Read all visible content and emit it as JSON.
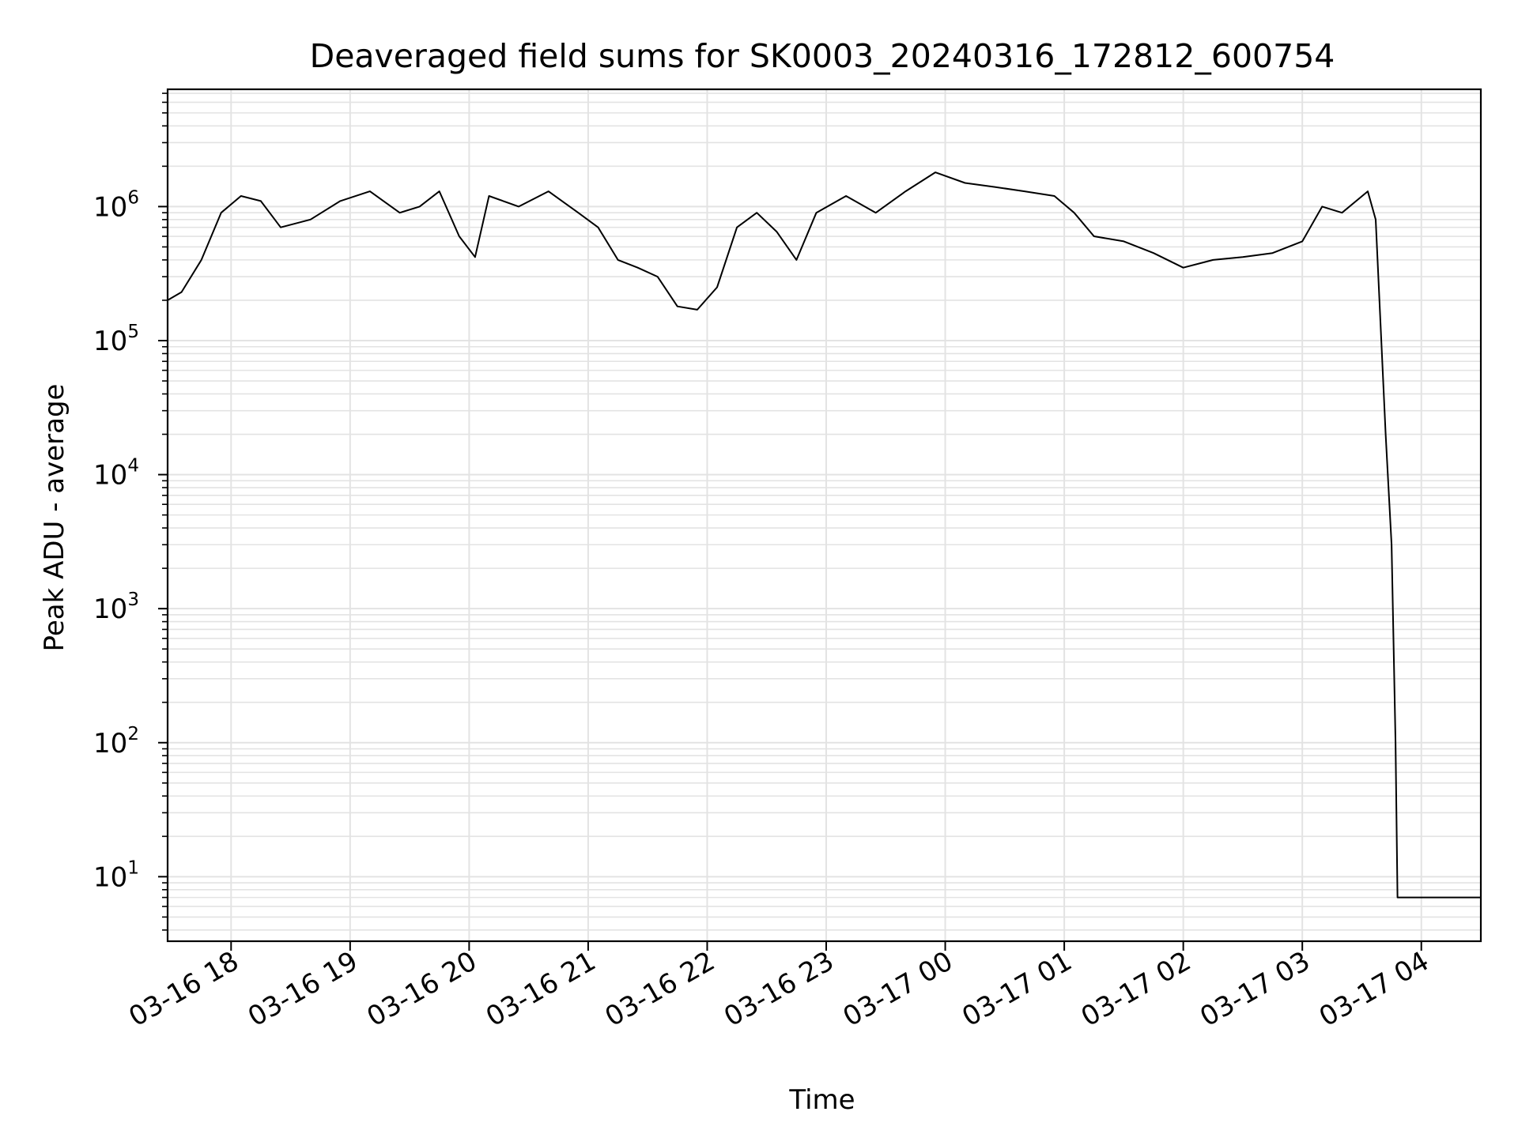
{
  "chart_data": {
    "type": "line",
    "title": "Deaveraged field sums for SK0003_20240316_172812_600754",
    "xlabel": "Time",
    "ylabel": "Peak ADU - average",
    "yscale": "log",
    "grid": true,
    "line_color": "#000000",
    "grid_color": "#e3e3e3",
    "x_range": [
      "2024-03-16 17:28",
      "2024-03-17 04:30"
    ],
    "ylim": [
      3.3,
      7500000
    ],
    "x_ticks": [
      {
        "t": "2024-03-16 18:00",
        "label": "03-16 18"
      },
      {
        "t": "2024-03-16 19:00",
        "label": "03-16 19"
      },
      {
        "t": "2024-03-16 20:00",
        "label": "03-16 20"
      },
      {
        "t": "2024-03-16 21:00",
        "label": "03-16 21"
      },
      {
        "t": "2024-03-16 22:00",
        "label": "03-16 22"
      },
      {
        "t": "2024-03-16 23:00",
        "label": "03-16 23"
      },
      {
        "t": "2024-03-17 00:00",
        "label": "03-17 00"
      },
      {
        "t": "2024-03-17 01:00",
        "label": "03-17 01"
      },
      {
        "t": "2024-03-17 02:00",
        "label": "03-17 02"
      },
      {
        "t": "2024-03-17 03:00",
        "label": "03-17 03"
      },
      {
        "t": "2024-03-17 04:00",
        "label": "03-17 04"
      }
    ],
    "y_ticks": [
      {
        "value": 10,
        "base": "10",
        "exp": "1"
      },
      {
        "value": 100,
        "base": "10",
        "exp": "2"
      },
      {
        "value": 1000,
        "base": "10",
        "exp": "3"
      },
      {
        "value": 10000,
        "base": "10",
        "exp": "4"
      },
      {
        "value": 100000,
        "base": "10",
        "exp": "5"
      },
      {
        "value": 1000000,
        "base": "10",
        "exp": "6"
      }
    ],
    "series": [
      {
        "x": [
          "2024-03-16 17:28",
          "2024-03-16 17:35",
          "2024-03-16 17:45",
          "2024-03-16 17:55",
          "2024-03-16 18:05",
          "2024-03-16 18:15",
          "2024-03-16 18:25",
          "2024-03-16 18:40",
          "2024-03-16 18:55",
          "2024-03-16 19:10",
          "2024-03-16 19:25",
          "2024-03-16 19:35",
          "2024-03-16 19:45",
          "2024-03-16 19:55",
          "2024-03-16 20:03",
          "2024-03-16 20:10",
          "2024-03-16 20:25",
          "2024-03-16 20:40",
          "2024-03-16 20:55",
          "2024-03-16 21:05",
          "2024-03-16 21:15",
          "2024-03-16 21:25",
          "2024-03-16 21:35",
          "2024-03-16 21:45",
          "2024-03-16 21:55",
          "2024-03-16 22:05",
          "2024-03-16 22:15",
          "2024-03-16 22:25",
          "2024-03-16 22:35",
          "2024-03-16 22:45",
          "2024-03-16 22:55",
          "2024-03-16 23:10",
          "2024-03-16 23:25",
          "2024-03-16 23:40",
          "2024-03-16 23:55",
          "2024-03-17 00:10",
          "2024-03-17 00:25",
          "2024-03-17 00:40",
          "2024-03-17 00:55",
          "2024-03-17 01:05",
          "2024-03-17 01:15",
          "2024-03-17 01:30",
          "2024-03-17 01:45",
          "2024-03-17 02:00",
          "2024-03-17 02:15",
          "2024-03-17 02:30",
          "2024-03-17 02:45",
          "2024-03-17 03:00",
          "2024-03-17 03:10",
          "2024-03-17 03:20",
          "2024-03-17 03:33",
          "2024-03-17 03:37",
          "2024-03-17 03:42",
          "2024-03-17 03:45",
          "2024-03-17 03:47",
          "2024-03-17 03:48",
          "2024-03-17 04:30"
        ],
        "y": [
          200000,
          230000,
          400000,
          900000,
          1200000,
          1100000,
          700000,
          800000,
          1100000,
          1300000,
          900000,
          1000000,
          1300000,
          600000,
          420000,
          1200000,
          1000000,
          1300000,
          900000,
          700000,
          400000,
          350000,
          300000,
          180000,
          170000,
          250000,
          700000,
          900000,
          650000,
          400000,
          900000,
          1200000,
          900000,
          1300000,
          1800000,
          1500000,
          1400000,
          1300000,
          1200000,
          900000,
          600000,
          550000,
          450000,
          350000,
          400000,
          420000,
          450000,
          550000,
          1000000,
          900000,
          1300000,
          800000,
          20000,
          3000,
          100,
          7,
          7
        ]
      }
    ]
  }
}
